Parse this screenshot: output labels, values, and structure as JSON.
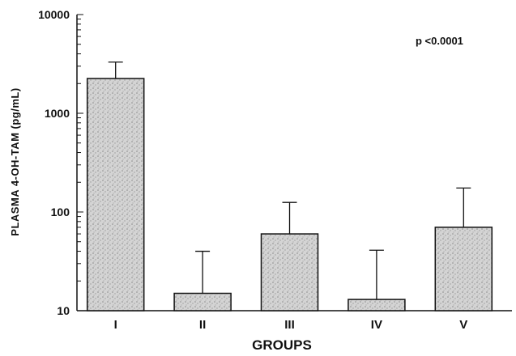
{
  "chart_data": {
    "type": "bar",
    "title": "",
    "xlabel": "GROUPS",
    "ylabel": "PLASMA 4-OH-TAM (pg/mL)",
    "yscale": "log",
    "ylim": [
      10,
      10000
    ],
    "yticks": [
      {
        "value": 10,
        "label": "10"
      },
      {
        "value": 100,
        "label": "100"
      },
      {
        "value": 1000,
        "label": "1000"
      },
      {
        "value": 10000,
        "label": "10000"
      }
    ],
    "categories": [
      "I",
      "II",
      "III",
      "IV",
      "V"
    ],
    "values": [
      2250,
      15,
      60,
      13,
      70
    ],
    "error_upper": [
      3300,
      40,
      125,
      41,
      175
    ],
    "annotation": "p <0.0001",
    "grid": false,
    "legend": "none",
    "colors": {
      "bar_fill": "#cfcfcf",
      "bar_edge": "#111111",
      "axis": "#111111"
    }
  }
}
